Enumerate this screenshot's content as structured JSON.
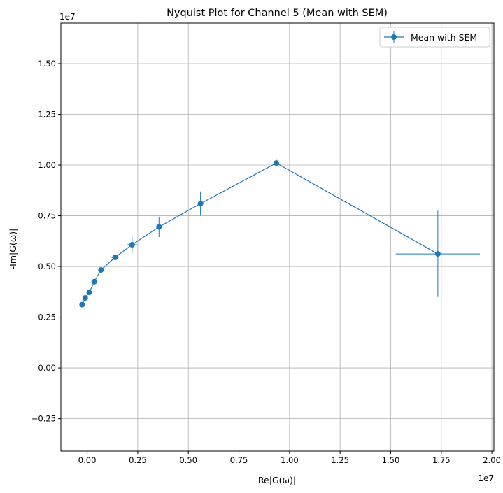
{
  "chart_data": {
    "type": "scatter",
    "title": "Nyquist Plot for Channel 5 (Mean with SEM)",
    "xlabel": "Re|G(ω)|",
    "ylabel": "-Im|G(ω)|",
    "x_scale_label": "1e7",
    "y_scale_label": "1e7",
    "xlim": [
      -0.13,
      2.01
    ],
    "ylim": [
      -0.41,
      1.7
    ],
    "x_ticks": [
      {
        "value": 0.0,
        "label": "0.00"
      },
      {
        "value": 0.25,
        "label": "0.25"
      },
      {
        "value": 0.5,
        "label": "0.50"
      },
      {
        "value": 0.75,
        "label": "0.75"
      },
      {
        "value": 1.0,
        "label": "1.00"
      },
      {
        "value": 1.25,
        "label": "1.25"
      },
      {
        "value": 1.5,
        "label": "1.50"
      },
      {
        "value": 1.75,
        "label": "1.75"
      },
      {
        "value": 2.0,
        "label": "2.00"
      }
    ],
    "y_ticks": [
      {
        "value": -0.25,
        "label": "−0.25"
      },
      {
        "value": 0.0,
        "label": "0.00"
      },
      {
        "value": 0.25,
        "label": "0.25"
      },
      {
        "value": 0.5,
        "label": "0.50"
      },
      {
        "value": 0.75,
        "label": "0.75"
      },
      {
        "value": 1.0,
        "label": "1.00"
      },
      {
        "value": 1.25,
        "label": "1.25"
      },
      {
        "value": 1.5,
        "label": "1.50"
      }
    ],
    "grid": true,
    "legend_position": "top-right",
    "series": [
      {
        "name": "Mean with SEM",
        "color": "#1f77b4",
        "points": [
          {
            "x": -0.025,
            "y": 0.312,
            "xerr": 0.0,
            "yerr": 0.0
          },
          {
            "x": -0.01,
            "y": 0.345,
            "xerr": 0.0,
            "yerr": 0.0
          },
          {
            "x": 0.01,
            "y": 0.372,
            "xerr": 0.0,
            "yerr": 0.0
          },
          {
            "x": 0.035,
            "y": 0.425,
            "xerr": 0.0,
            "yerr": 0.0
          },
          {
            "x": 0.068,
            "y": 0.483,
            "xerr": 0.0,
            "yerr": 0.0
          },
          {
            "x": 0.138,
            "y": 0.545,
            "xerr": 0.018,
            "yerr": 0.018
          },
          {
            "x": 0.222,
            "y": 0.607,
            "xerr": 0.025,
            "yerr": 0.04
          },
          {
            "x": 0.355,
            "y": 0.695,
            "xerr": 0.0,
            "yerr": 0.05
          },
          {
            "x": 0.56,
            "y": 0.81,
            "xerr": 0.0,
            "yerr": 0.06
          },
          {
            "x": 0.935,
            "y": 1.01,
            "xerr": 0.0,
            "yerr": 0.016
          },
          {
            "x": 1.733,
            "y": 0.562,
            "xerr": 0.208,
            "yerr": 0.213
          }
        ]
      }
    ]
  }
}
